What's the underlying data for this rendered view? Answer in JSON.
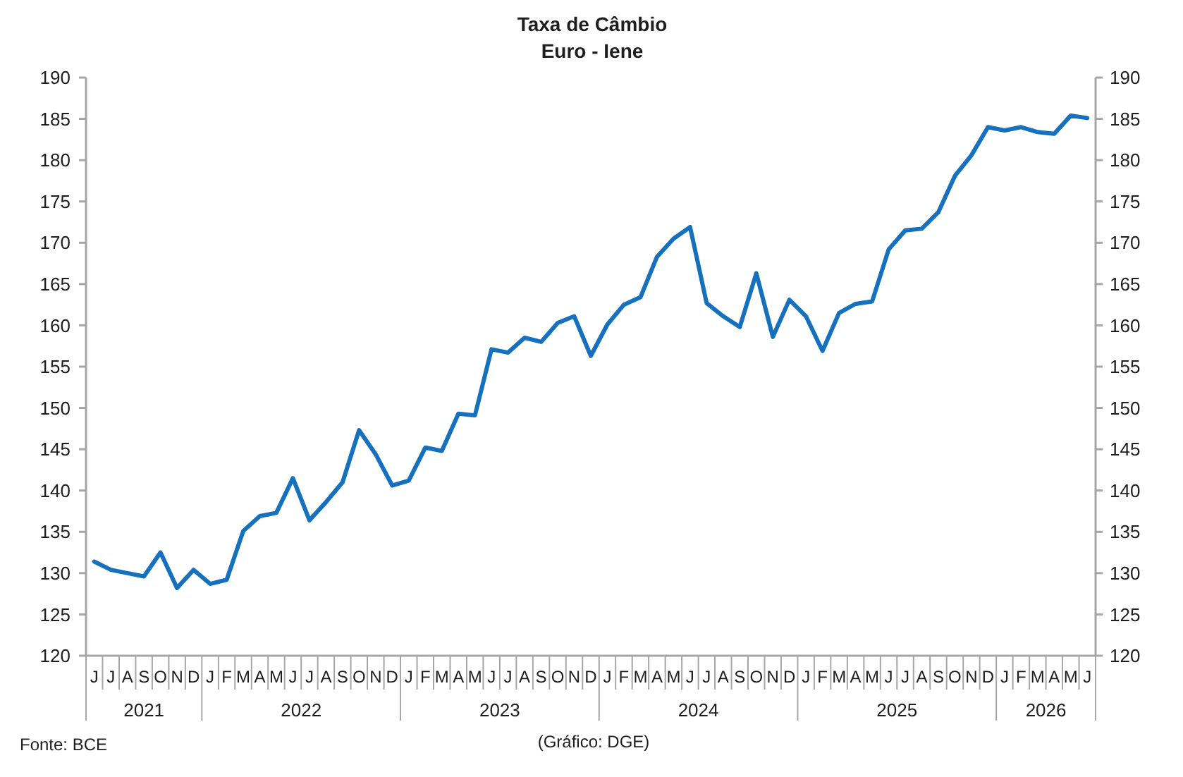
{
  "chart_data": {
    "type": "line",
    "title": "Taxa de Câmbio",
    "subtitle": "Euro - Iene",
    "annotations": [
      "Fonte: BCE",
      "(Gráfico: DGE)",
      "2021",
      "2022",
      "2023",
      "2024",
      "2025",
      "2026"
    ],
    "categories": [
      "J",
      "J",
      "A",
      "S",
      "O",
      "N",
      "D",
      "J",
      "F",
      "M",
      "A",
      "M",
      "J",
      "J",
      "A",
      "S",
      "O",
      "N",
      "D",
      "J",
      "F",
      "M",
      "A",
      "M",
      "J",
      "J",
      "A",
      "S",
      "O",
      "N",
      "D",
      "J",
      "F",
      "M",
      "A",
      "M",
      "J",
      "J",
      "A",
      "S",
      "O",
      "N",
      "D",
      "J",
      "F",
      "M",
      "A",
      "M",
      "J",
      "J",
      "A",
      "S",
      "O",
      "N",
      "D",
      "J",
      "F",
      "M",
      "A",
      "M",
      "J"
    ],
    "series": [
      {
        "color": "#1570be",
        "values": [
          131.4,
          130.4,
          130.0,
          129.6,
          132.5,
          128.2,
          130.4,
          128.7,
          129.2,
          135.1,
          136.9,
          137.3,
          141.5,
          136.4,
          138.6,
          141.0,
          147.3,
          144.4,
          140.6,
          141.2,
          145.2,
          144.8,
          149.3,
          149.1,
          157.1,
          156.7,
          158.5,
          158.0,
          160.3,
          161.1,
          156.3,
          160.1,
          162.5,
          163.4,
          168.3,
          170.5,
          171.9,
          162.7,
          161.1,
          159.8,
          166.3,
          158.6,
          163.1,
          161.1,
          156.9,
          161.5,
          162.6,
          162.9,
          169.2,
          171.5,
          171.7,
          173.7,
          178.1,
          180.6,
          184.0,
          183.6,
          184.0,
          183.4,
          183.2,
          185.4,
          185.1
        ]
      }
    ],
    "line_style": "solid",
    "ylim": [
      120,
      190
    ],
    "yticks": [
      120,
      125,
      130,
      135,
      140,
      145,
      150,
      155,
      160,
      165,
      170,
      175,
      180,
      185,
      190
    ],
    "y2lim": [
      120,
      190
    ],
    "y2ticks": [
      120,
      125,
      130,
      135,
      140,
      145,
      150,
      155,
      160,
      165,
      170,
      175,
      180,
      185,
      190
    ]
  }
}
